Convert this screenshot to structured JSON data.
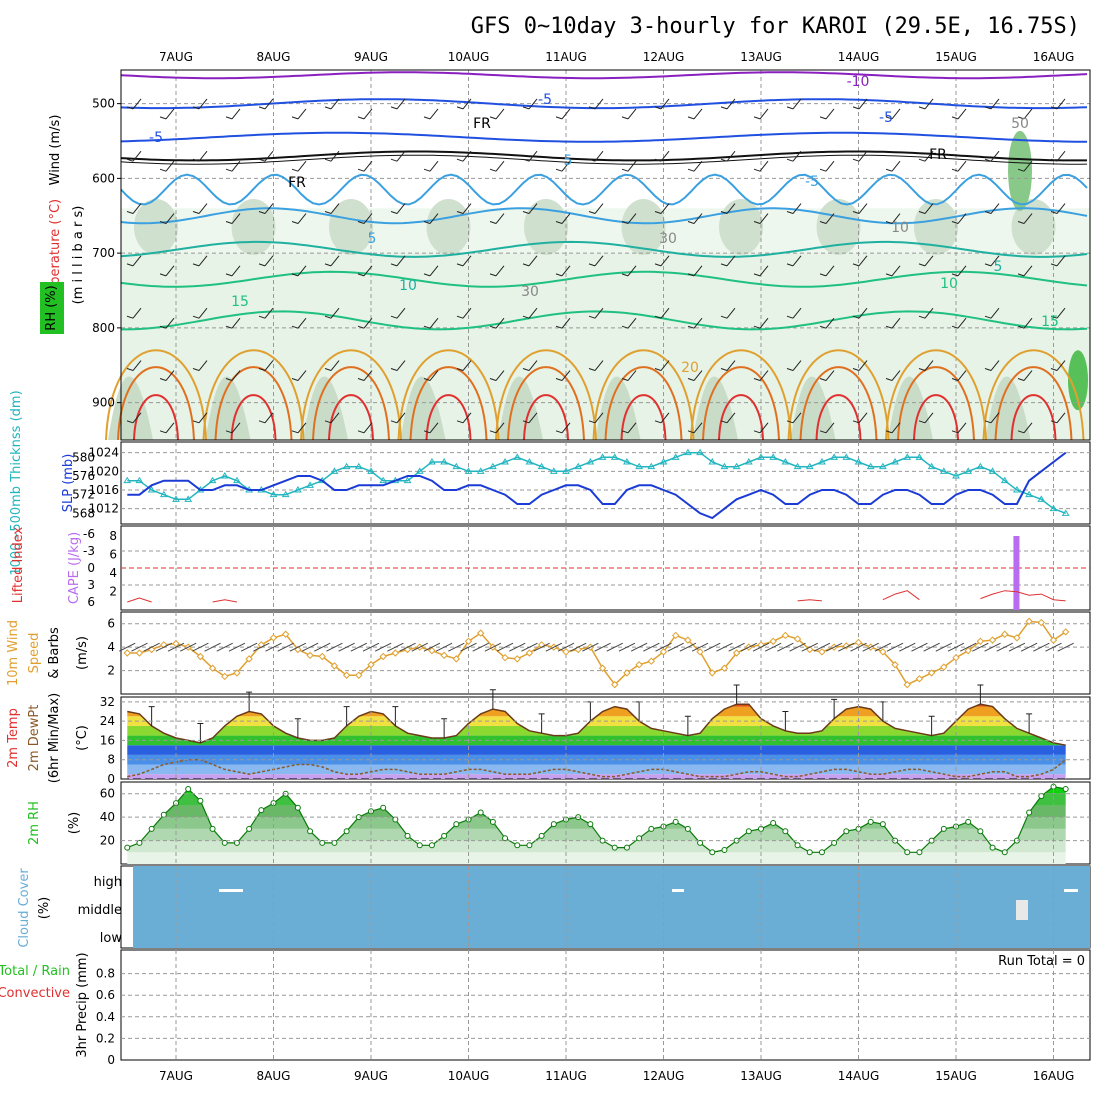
{
  "title": "GFS 0~10day 3-hourly for KAROI (29.5E, 16.75S)",
  "date_labels": [
    "7AUG",
    "8AUG",
    "9AUG",
    "10AUG",
    "11AUG",
    "12AUG",
    "13AUG",
    "14AUG",
    "15AUG",
    "16AUG"
  ],
  "run_total_label": "Run Total = 0",
  "colors": {
    "temp_line": "#1a3bd6",
    "thickness": "#22b5c0",
    "cape": "#b86cf0",
    "lifted": "#e03030",
    "wind_speed": "#e0a030",
    "rh_green": "#22c022",
    "cloud": "#6aaed6",
    "tmax": "#e06010",
    "dewpt": "#8a5a2a"
  },
  "panels": {
    "upper": {
      "ylabel_wind": "Wind (m/s)",
      "ylabel_temp": "Temperature (°C)",
      "ylabel_rh": "RH (%)",
      "ylabel_pressure": "(m i l l i b a r s)",
      "pressure_ticks": [
        "500",
        "600",
        "700",
        "800",
        "900"
      ],
      "contour_labels": [
        "-10",
        "-5",
        "-5",
        "-5",
        "5",
        "-5",
        "5",
        "5",
        "10",
        "10",
        "15",
        "15",
        "20",
        "FR",
        "FR",
        "FR",
        "50",
        "30",
        "30",
        "10"
      ]
    },
    "slp": {
      "ylabel_left": "1000~500mb Thicknss (dm)",
      "ylabel_right": "SLP (mb)",
      "left_ticks": [
        "580",
        "576",
        "572",
        "568"
      ],
      "right_ticks": [
        "1024",
        "1020",
        "1016",
        "1012"
      ]
    },
    "cape": {
      "ylabel_left": "Lifted Index",
      "ylabel_right": "CAPE (J/kg)",
      "left_ticks": [
        "-6",
        "-3",
        "0",
        "3",
        "6"
      ],
      "right_ticks": [
        "8",
        "6",
        "4",
        "2"
      ]
    },
    "wind": {
      "ylabel_a": "10m Wind",
      "ylabel_b": "Speed",
      "ylabel_c": "& Barbs",
      "ylabel_unit": "(m/s)",
      "ticks": [
        "6",
        "4",
        "2"
      ]
    },
    "temp": {
      "ylabel_a": "2m Temp",
      "ylabel_b": "2m DewPt",
      "ylabel_c": "(6hr Min/Max)",
      "ylabel_unit": "(°C)",
      "ticks": [
        "32",
        "24",
        "16",
        "8",
        "0"
      ]
    },
    "rh": {
      "ylabel_a": "2m RH",
      "ylabel_unit": "(%)",
      "ticks": [
        "60",
        "40",
        "20"
      ]
    },
    "cloud": {
      "ylabel_a": "Cloud Cover",
      "ylabel_unit": "(%)",
      "levels": [
        "high",
        "middle",
        "low"
      ]
    },
    "precip": {
      "ylabel_a": "Total / Rain",
      "ylabel_b": "Convective",
      "ylabel_c": "3hr Precip (mm)",
      "ticks": [
        "0.8",
        "0.6",
        "0.4",
        "0.2",
        "0"
      ]
    }
  },
  "chart_data": [
    {
      "type": "line",
      "name": "sea-level-pressure",
      "ylabel": "SLP (mb)",
      "ylim": [
        1010,
        1025
      ],
      "x_days_from_7aug": [
        -0.5,
        -0.375,
        -0.25,
        -0.125,
        0,
        0.125,
        0.25,
        0.375,
        0.5,
        0.625,
        0.75,
        0.875,
        1,
        1.125,
        1.25,
        1.375,
        1.5,
        1.625,
        1.75,
        1.875,
        2,
        2.125,
        2.25,
        2.375,
        2.5,
        2.625,
        2.75,
        2.875,
        3,
        3.125,
        3.25,
        3.375,
        3.5,
        3.625,
        3.75,
        3.875,
        4,
        4.125,
        4.25,
        4.375,
        4.5,
        4.625,
        4.75,
        4.875,
        5,
        5.125,
        5.25,
        5.375,
        5.5,
        5.625,
        5.75,
        5.875,
        6,
        6.125,
        6.25,
        6.375,
        6.5,
        6.625,
        6.75,
        6.875,
        7,
        7.125,
        7.25,
        7.375,
        7.5,
        7.625,
        7.75,
        7.875,
        8,
        8.125,
        8.25,
        8.375,
        8.5,
        8.625,
        8.75,
        8.875,
        9,
        9.125
      ],
      "values": [
        1015,
        1015,
        1017,
        1018,
        1018,
        1018,
        1016,
        1016,
        1017,
        1017,
        1016,
        1016,
        1017,
        1018,
        1019,
        1019,
        1018,
        1016,
        1016,
        1017,
        1017,
        1017,
        1018,
        1019,
        1019,
        1018,
        1016,
        1016,
        1017,
        1017,
        1016,
        1015,
        1013,
        1013,
        1015,
        1016,
        1017,
        1017,
        1016,
        1013,
        1013,
        1016,
        1017,
        1017,
        1016,
        1015,
        1013,
        1011,
        1010,
        1012,
        1014,
        1015,
        1016,
        1015,
        1013,
        1013,
        1015,
        1016,
        1016,
        1015,
        1013,
        1013,
        1015,
        1016,
        1016,
        1015,
        1013,
        1013,
        1015,
        1016,
        1016,
        1015,
        1013,
        1013,
        1018,
        1020,
        1022,
        1024
      ]
    },
    {
      "type": "line",
      "name": "thickness-1000-500",
      "ylabel": "1000~500mb Thicknss (dm)",
      "ylim": [
        567,
        582
      ],
      "x_days_from_7aug": [
        -0.5,
        -0.375,
        -0.25,
        -0.125,
        0,
        0.125,
        0.25,
        0.375,
        0.5,
        0.625,
        0.75,
        0.875,
        1,
        1.125,
        1.25,
        1.375,
        1.5,
        1.625,
        1.75,
        1.875,
        2,
        2.125,
        2.25,
        2.375,
        2.5,
        2.625,
        2.75,
        2.875,
        3,
        3.125,
        3.25,
        3.375,
        3.5,
        3.625,
        3.75,
        3.875,
        4,
        4.125,
        4.25,
        4.375,
        4.5,
        4.625,
        4.75,
        4.875,
        5,
        5.125,
        5.25,
        5.375,
        5.5,
        5.625,
        5.75,
        5.875,
        6,
        6.125,
        6.25,
        6.375,
        6.5,
        6.625,
        6.75,
        6.875,
        7,
        7.125,
        7.25,
        7.375,
        7.5,
        7.625,
        7.75,
        7.875,
        8,
        8.125,
        8.25,
        8.375,
        8.5,
        8.625,
        8.75,
        8.875,
        9,
        9.125
      ],
      "values": [
        575,
        575,
        573,
        572,
        571,
        571,
        573,
        575,
        576,
        575,
        573,
        573,
        572,
        572,
        573,
        574,
        575,
        577,
        578,
        578,
        577,
        575,
        575,
        575,
        577,
        579,
        579,
        578,
        577,
        577,
        578,
        579,
        580,
        579,
        578,
        577,
        577,
        578,
        579,
        580,
        580,
        579,
        578,
        578,
        579,
        580,
        581,
        581,
        579,
        578,
        578,
        579,
        580,
        580,
        579,
        578,
        578,
        579,
        580,
        580,
        579,
        578,
        578,
        579,
        580,
        580,
        578,
        577,
        576,
        577,
        578,
        577,
        575,
        573,
        572,
        571,
        569,
        568
      ]
    },
    {
      "type": "line",
      "name": "lifted-index",
      "ylabel": "Lifted Index",
      "ylim": [
        6,
        -6
      ],
      "x_days_from_7aug": [
        -0.5,
        -0.375,
        -0.25,
        0.375,
        0.5,
        0.625,
        6.375,
        6.5,
        6.625,
        7.25,
        7.375,
        7.5,
        7.625,
        8.25,
        8.375,
        8.5,
        8.625,
        8.75,
        8.875,
        9,
        9.125
      ],
      "values": [
        6,
        5.3,
        6,
        6,
        5.6,
        6,
        5.8,
        5.6,
        5.8,
        5.6,
        4.6,
        4.0,
        5.6,
        5.4,
        4.6,
        4.0,
        4.2,
        4.8,
        4.6,
        5.6,
        5.8
      ]
    },
    {
      "type": "bar",
      "name": "cape",
      "ylabel": "CAPE (J/kg)",
      "ylim": [
        0,
        8
      ],
      "x_days_from_7aug": [
        8.62
      ],
      "values": [
        8
      ]
    },
    {
      "type": "line",
      "name": "10m-wind-speed",
      "ylabel": "Speed (m/s)",
      "ylim": [
        0,
        7
      ],
      "x_days_from_7aug": [
        -0.5,
        -0.375,
        -0.25,
        -0.125,
        0,
        0.125,
        0.25,
        0.375,
        0.5,
        0.625,
        0.75,
        0.875,
        1,
        1.125,
        1.25,
        1.375,
        1.5,
        1.625,
        1.75,
        1.875,
        2,
        2.125,
        2.25,
        2.375,
        2.5,
        2.625,
        2.75,
        2.875,
        3,
        3.125,
        3.25,
        3.375,
        3.5,
        3.625,
        3.75,
        3.875,
        4,
        4.125,
        4.25,
        4.375,
        4.5,
        4.625,
        4.75,
        4.875,
        5,
        5.125,
        5.25,
        5.375,
        5.5,
        5.625,
        5.75,
        5.875,
        6,
        6.125,
        6.25,
        6.375,
        6.5,
        6.625,
        6.75,
        6.875,
        7,
        7.125,
        7.25,
        7.375,
        7.5,
        7.625,
        7.75,
        7.875,
        8,
        8.125,
        8.25,
        8.375,
        8.5,
        8.625,
        8.75,
        8.875,
        9,
        9.125
      ],
      "values": [
        3.5,
        3.5,
        3.8,
        4.2,
        4.3,
        4.0,
        3.2,
        2.2,
        1.5,
        1.8,
        3.0,
        4.2,
        4.8,
        5.1,
        3.8,
        3.3,
        3.2,
        2.4,
        1.6,
        1.6,
        2.5,
        3.2,
        3.5,
        3.8,
        4.0,
        3.7,
        3.3,
        3.0,
        4.5,
        5.2,
        4.0,
        3.1,
        3.0,
        3.5,
        4.2,
        4.0,
        3.6,
        3.8,
        4.0,
        2.2,
        0.8,
        1.8,
        2.5,
        2.8,
        3.6,
        5.0,
        4.6,
        3.6,
        1.8,
        2.2,
        3.5,
        4.0,
        4.2,
        4.5,
        5.0,
        4.7,
        3.8,
        3.6,
        4.0,
        4.1,
        4.4,
        4.0,
        3.6,
        2.5,
        0.8,
        1.3,
        1.8,
        2.3,
        3.1,
        3.7,
        4.5,
        4.6,
        5.1,
        4.8,
        6.2,
        6.1,
        4.6,
        5.3
      ]
    },
    {
      "type": "area",
      "name": "2m-temperature",
      "ylabel": "(°C)",
      "ylim": [
        0,
        34
      ],
      "x_days_from_7aug": [
        -0.5,
        -0.375,
        -0.25,
        -0.125,
        0,
        0.125,
        0.25,
        0.375,
        0.5,
        0.625,
        0.75,
        0.875,
        1,
        1.125,
        1.25,
        1.375,
        1.5,
        1.625,
        1.75,
        1.875,
        2,
        2.125,
        2.25,
        2.375,
        2.5,
        2.625,
        2.75,
        2.875,
        3,
        3.125,
        3.25,
        3.375,
        3.5,
        3.625,
        3.75,
        3.875,
        4,
        4.125,
        4.25,
        4.375,
        4.5,
        4.625,
        4.75,
        4.875,
        5,
        5.125,
        5.25,
        5.375,
        5.5,
        5.625,
        5.75,
        5.875,
        6,
        6.125,
        6.25,
        6.375,
        6.5,
        6.625,
        6.75,
        6.875,
        7,
        7.125,
        7.25,
        7.375,
        7.5,
        7.625,
        7.75,
        7.875,
        8,
        8.125,
        8.25,
        8.375,
        8.5,
        8.625,
        8.75,
        8.875,
        9,
        9.125
      ],
      "values": [
        28,
        27,
        22,
        19,
        17,
        16,
        15,
        17,
        22,
        26,
        28,
        27,
        22,
        19,
        17,
        16,
        16,
        17,
        22,
        26,
        28,
        27,
        22,
        19,
        18,
        17,
        17,
        18,
        23,
        27,
        29,
        28,
        23,
        20,
        19,
        18,
        18,
        19,
        24,
        28,
        30,
        29,
        24,
        21,
        20,
        19,
        18,
        19,
        25,
        29,
        31,
        31,
        25,
        22,
        20,
        19,
        19,
        20,
        25,
        29,
        30,
        29,
        24,
        21,
        20,
        19,
        18,
        19,
        24,
        29,
        31,
        30,
        25,
        21,
        19,
        17,
        15,
        14
      ]
    },
    {
      "type": "line",
      "name": "2m-dewpoint",
      "ylabel": "(°C)",
      "ylim": [
        0,
        34
      ],
      "x_days_from_7aug": [
        -0.5,
        -0.375,
        -0.25,
        -0.125,
        0,
        0.125,
        0.25,
        0.375,
        0.5,
        0.625,
        0.75,
        0.875,
        1,
        1.125,
        1.25,
        1.375,
        1.5,
        1.625,
        1.75,
        1.875,
        2,
        2.125,
        2.25,
        2.375,
        2.5,
        2.625,
        2.75,
        2.875,
        3,
        3.125,
        3.25,
        3.375,
        3.5,
        3.625,
        3.75,
        3.875,
        4,
        4.125,
        4.25,
        4.375,
        4.5,
        4.625,
        4.75,
        4.875,
        5,
        5.125,
        5.25,
        5.375,
        5.5,
        5.625,
        5.75,
        5.875,
        6,
        6.125,
        6.25,
        6.375,
        6.5,
        6.625,
        6.75,
        6.875,
        7,
        7.125,
        7.25,
        7.375,
        7.5,
        7.625,
        7.75,
        7.875,
        8,
        8.125,
        8.25,
        8.375,
        8.5,
        8.625,
        8.75,
        8.875,
        9,
        9.125
      ],
      "values": [
        1,
        2,
        4,
        6,
        7,
        8,
        8,
        6,
        4,
        3,
        2,
        3,
        4,
        5,
        6,
        6,
        5,
        3,
        2,
        2,
        3,
        4,
        4,
        3,
        2,
        2,
        2,
        3,
        4,
        4,
        3,
        2,
        2,
        2,
        3,
        4,
        4,
        3,
        2,
        1,
        1,
        2,
        3,
        4,
        4,
        3,
        2,
        1,
        1,
        1,
        2,
        3,
        3,
        2,
        1,
        1,
        2,
        3,
        4,
        4,
        3,
        2,
        2,
        3,
        4,
        4,
        3,
        2,
        1,
        1,
        2,
        3,
        3,
        1,
        1,
        2,
        4,
        8
      ]
    },
    {
      "type": "area",
      "name": "2m-relative-humidity",
      "ylabel": "(%)",
      "ylim": [
        0,
        70
      ],
      "x_days_from_7aug": [
        -0.5,
        -0.375,
        -0.25,
        -0.125,
        0,
        0.125,
        0.25,
        0.375,
        0.5,
        0.625,
        0.75,
        0.875,
        1,
        1.125,
        1.25,
        1.375,
        1.5,
        1.625,
        1.75,
        1.875,
        2,
        2.125,
        2.25,
        2.375,
        2.5,
        2.625,
        2.75,
        2.875,
        3,
        3.125,
        3.25,
        3.375,
        3.5,
        3.625,
        3.75,
        3.875,
        4,
        4.125,
        4.25,
        4.375,
        4.5,
        4.625,
        4.75,
        4.875,
        5,
        5.125,
        5.25,
        5.375,
        5.5,
        5.625,
        5.75,
        5.875,
        6,
        6.125,
        6.25,
        6.375,
        6.5,
        6.625,
        6.75,
        6.875,
        7,
        7.125,
        7.25,
        7.375,
        7.5,
        7.625,
        7.75,
        7.875,
        8,
        8.125,
        8.25,
        8.375,
        8.5,
        8.625,
        8.75,
        8.875,
        9,
        9.125
      ],
      "values": [
        14,
        18,
        30,
        42,
        52,
        64,
        54,
        30,
        18,
        18,
        30,
        46,
        52,
        60,
        48,
        28,
        18,
        18,
        28,
        40,
        45,
        48,
        38,
        24,
        16,
        16,
        24,
        34,
        38,
        44,
        36,
        22,
        16,
        16,
        24,
        34,
        38,
        40,
        34,
        20,
        14,
        14,
        22,
        30,
        32,
        36,
        30,
        18,
        10,
        12,
        20,
        28,
        30,
        35,
        28,
        16,
        10,
        10,
        18,
        28,
        30,
        36,
        34,
        20,
        10,
        10,
        20,
        30,
        32,
        36,
        28,
        14,
        10,
        20,
        44,
        58,
        66,
        64
      ]
    },
    {
      "type": "table",
      "name": "cloud-cover",
      "columns": [
        "level",
        "value"
      ],
      "rows": [
        [
          "high",
          "high"
        ],
        [
          "middle",
          "high"
        ],
        [
          "low",
          "high"
        ]
      ]
    },
    {
      "type": "bar",
      "name": "3hr-precip",
      "ylabel": "3hr Precip (mm)",
      "ylim": [
        0,
        1
      ],
      "values": []
    }
  ]
}
